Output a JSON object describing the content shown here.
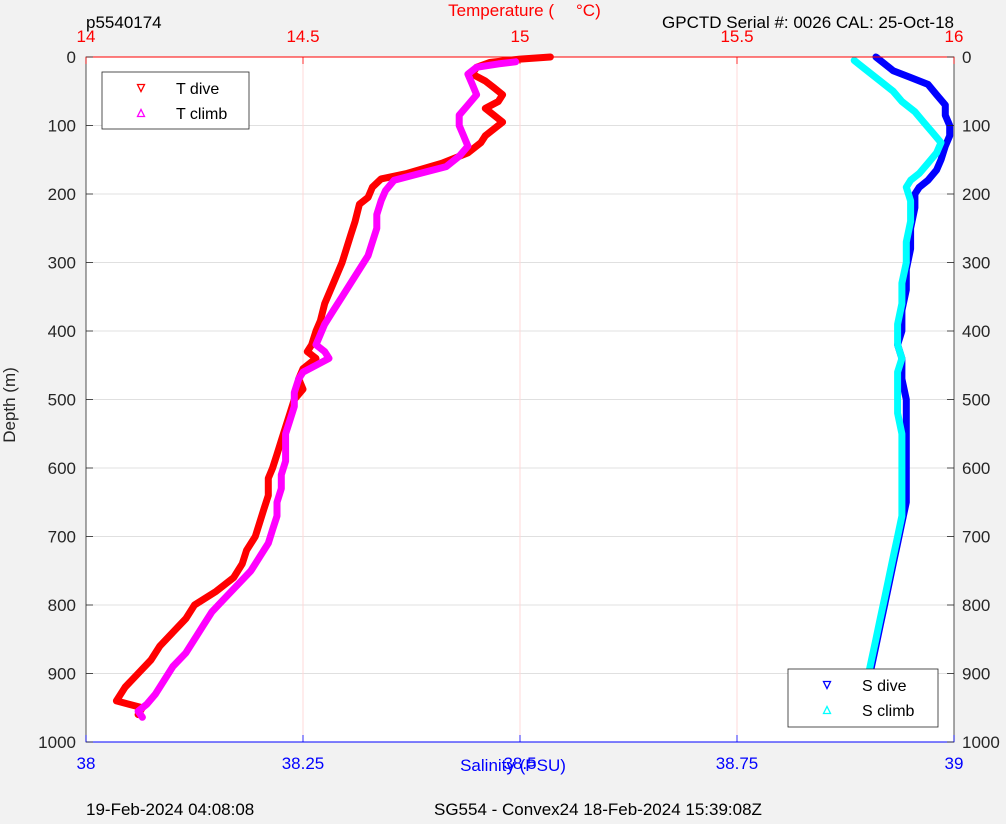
{
  "header": {
    "profile_id": "p5540174",
    "sensor_info": "GPCTD Serial #: 0026 CAL: 25-Oct-18"
  },
  "footer": {
    "plot_date": "19-Feb-2024 04:08:08",
    "mission": "SG554 - Convex24 18-Feb-2024 15:39:08Z"
  },
  "colors": {
    "temperature_axis": "#ff0000",
    "salinity_axis": "#0000ff",
    "t_dive": "#ff0000",
    "t_climb": "#ff00ff",
    "s_dive": "#0000ff",
    "s_climb": "#00ffff"
  },
  "chart_data": {
    "type": "line",
    "ylabel": "Depth (m)",
    "ylim": [
      0,
      1000
    ],
    "y_reversed": true,
    "y_ticks": [
      "0",
      "100",
      "200",
      "300",
      "400",
      "500",
      "600",
      "700",
      "800",
      "900",
      "1000"
    ],
    "temperature_axis": {
      "label": "Temperature (°C)",
      "label_left": "Temperature (",
      "label_right": "°C)",
      "position": "top",
      "range": [
        14,
        16
      ],
      "ticks": [
        "14",
        "14.5",
        "15",
        "15.5",
        "16"
      ]
    },
    "salinity_axis": {
      "label": "Salinity (PSU)",
      "position": "bottom",
      "range": [
        38,
        39
      ],
      "ticks": [
        "38",
        "38.25",
        "38.5",
        "38.75",
        "39"
      ]
    },
    "grid": true,
    "legends": [
      {
        "placement": "top-left",
        "entries": [
          "T dive",
          "T climb"
        ]
      },
      {
        "placement": "bottom-right",
        "entries": [
          "S dive",
          "S climb"
        ]
      }
    ],
    "series": [
      {
        "name": "T dive",
        "axis": "temperature",
        "marker": "triangle-down",
        "points": [
          [
            15.07,
            0
          ],
          [
            15.0,
            3
          ],
          [
            14.93,
            8
          ],
          [
            14.9,
            15
          ],
          [
            14.89,
            25
          ],
          [
            14.92,
            35
          ],
          [
            14.94,
            45
          ],
          [
            14.96,
            55
          ],
          [
            14.95,
            65
          ],
          [
            14.92,
            75
          ],
          [
            14.94,
            85
          ],
          [
            14.96,
            95
          ],
          [
            14.94,
            105
          ],
          [
            14.92,
            115
          ],
          [
            14.91,
            125
          ],
          [
            14.88,
            140
          ],
          [
            14.82,
            155
          ],
          [
            14.74,
            170
          ],
          [
            14.68,
            178
          ],
          [
            14.66,
            190
          ],
          [
            14.65,
            205
          ],
          [
            14.63,
            215
          ],
          [
            14.62,
            240
          ],
          [
            14.61,
            260
          ],
          [
            14.6,
            280
          ],
          [
            14.59,
            300
          ],
          [
            14.57,
            330
          ],
          [
            14.55,
            360
          ],
          [
            14.54,
            385
          ],
          [
            14.53,
            400
          ],
          [
            14.52,
            420
          ],
          [
            14.51,
            430
          ],
          [
            14.53,
            440
          ],
          [
            14.5,
            455
          ],
          [
            14.49,
            470
          ],
          [
            14.5,
            485
          ],
          [
            14.48,
            500
          ],
          [
            14.47,
            520
          ],
          [
            14.46,
            540
          ],
          [
            14.45,
            560
          ],
          [
            14.44,
            580
          ],
          [
            14.43,
            600
          ],
          [
            14.42,
            615
          ],
          [
            14.42,
            640
          ],
          [
            14.41,
            660
          ],
          [
            14.4,
            680
          ],
          [
            14.39,
            700
          ],
          [
            14.37,
            720
          ],
          [
            14.36,
            740
          ],
          [
            14.34,
            760
          ],
          [
            14.3,
            780
          ],
          [
            14.25,
            800
          ],
          [
            14.23,
            820
          ],
          [
            14.2,
            840
          ],
          [
            14.17,
            860
          ],
          [
            14.15,
            880
          ],
          [
            14.12,
            900
          ],
          [
            14.09,
            920
          ],
          [
            14.07,
            940
          ],
          [
            14.13,
            950
          ],
          [
            14.12,
            960
          ]
        ]
      },
      {
        "name": "T climb",
        "axis": "temperature",
        "marker": "triangle-up",
        "points": [
          [
            14.13,
            964
          ],
          [
            14.12,
            955
          ],
          [
            14.14,
            945
          ],
          [
            14.16,
            930
          ],
          [
            14.18,
            910
          ],
          [
            14.2,
            890
          ],
          [
            14.23,
            870
          ],
          [
            14.25,
            850
          ],
          [
            14.27,
            830
          ],
          [
            14.29,
            810
          ],
          [
            14.32,
            790
          ],
          [
            14.35,
            770
          ],
          [
            14.38,
            750
          ],
          [
            14.4,
            730
          ],
          [
            14.42,
            710
          ],
          [
            14.43,
            690
          ],
          [
            14.44,
            670
          ],
          [
            14.44,
            650
          ],
          [
            14.45,
            630
          ],
          [
            14.45,
            610
          ],
          [
            14.46,
            590
          ],
          [
            14.46,
            570
          ],
          [
            14.46,
            550
          ],
          [
            14.47,
            530
          ],
          [
            14.48,
            510
          ],
          [
            14.48,
            490
          ],
          [
            14.49,
            470
          ],
          [
            14.5,
            460
          ],
          [
            14.53,
            450
          ],
          [
            14.56,
            440
          ],
          [
            14.55,
            430
          ],
          [
            14.53,
            420
          ],
          [
            14.54,
            405
          ],
          [
            14.55,
            390
          ],
          [
            14.57,
            370
          ],
          [
            14.59,
            350
          ],
          [
            14.61,
            330
          ],
          [
            14.63,
            310
          ],
          [
            14.65,
            290
          ],
          [
            14.66,
            270
          ],
          [
            14.67,
            250
          ],
          [
            14.67,
            230
          ],
          [
            14.68,
            210
          ],
          [
            14.69,
            195
          ],
          [
            14.71,
            180
          ],
          [
            14.77,
            170
          ],
          [
            14.83,
            160
          ],
          [
            14.86,
            145
          ],
          [
            14.88,
            130
          ],
          [
            14.87,
            115
          ],
          [
            14.86,
            100
          ],
          [
            14.86,
            85
          ],
          [
            14.88,
            70
          ],
          [
            14.9,
            55
          ],
          [
            14.89,
            40
          ],
          [
            14.88,
            25
          ],
          [
            14.9,
            15
          ],
          [
            14.95,
            10
          ],
          [
            14.99,
            7
          ]
        ]
      },
      {
        "name": "S dive",
        "axis": "salinity",
        "marker": "triangle-down",
        "points": [
          [
            38.91,
            0
          ],
          [
            38.92,
            10
          ],
          [
            38.93,
            20
          ],
          [
            38.95,
            30
          ],
          [
            38.97,
            40
          ],
          [
            38.98,
            55
          ],
          [
            38.99,
            70
          ],
          [
            38.99,
            85
          ],
          [
            38.995,
            100
          ],
          [
            38.995,
            115
          ],
          [
            38.99,
            130
          ],
          [
            38.985,
            150
          ],
          [
            38.98,
            165
          ],
          [
            38.97,
            180
          ],
          [
            38.96,
            190
          ],
          [
            38.955,
            200
          ],
          [
            38.955,
            220
          ],
          [
            38.95,
            250
          ],
          [
            38.95,
            280
          ],
          [
            38.945,
            310
          ],
          [
            38.945,
            340
          ],
          [
            38.94,
            370
          ],
          [
            38.94,
            400
          ],
          [
            38.935,
            420
          ],
          [
            38.94,
            440
          ],
          [
            38.94,
            470
          ],
          [
            38.945,
            500
          ],
          [
            38.945,
            530
          ],
          [
            38.945,
            560
          ],
          [
            38.945,
            590
          ],
          [
            38.945,
            620
          ],
          [
            38.945,
            650
          ],
          [
            38.94,
            680
          ],
          [
            38.935,
            710
          ],
          [
            38.93,
            740
          ],
          [
            38.925,
            770
          ],
          [
            38.92,
            800
          ],
          [
            38.915,
            830
          ],
          [
            38.91,
            860
          ],
          [
            38.905,
            890
          ],
          [
            38.9,
            920
          ],
          [
            38.895,
            945
          ],
          [
            38.89,
            962
          ]
        ]
      },
      {
        "name": "S climb",
        "axis": "salinity",
        "marker": "triangle-up",
        "points": [
          [
            38.89,
            965
          ],
          [
            38.895,
            940
          ],
          [
            38.9,
            910
          ],
          [
            38.905,
            880
          ],
          [
            38.91,
            850
          ],
          [
            38.915,
            820
          ],
          [
            38.92,
            790
          ],
          [
            38.925,
            760
          ],
          [
            38.93,
            730
          ],
          [
            38.935,
            700
          ],
          [
            38.94,
            670
          ],
          [
            38.94,
            640
          ],
          [
            38.94,
            610
          ],
          [
            38.94,
            580
          ],
          [
            38.94,
            550
          ],
          [
            38.935,
            520
          ],
          [
            38.935,
            490
          ],
          [
            38.935,
            460
          ],
          [
            38.94,
            440
          ],
          [
            38.935,
            420
          ],
          [
            38.935,
            390
          ],
          [
            38.94,
            360
          ],
          [
            38.94,
            330
          ],
          [
            38.945,
            300
          ],
          [
            38.945,
            270
          ],
          [
            38.95,
            240
          ],
          [
            38.95,
            210
          ],
          [
            38.945,
            190
          ],
          [
            38.95,
            180
          ],
          [
            38.96,
            170
          ],
          [
            38.97,
            155
          ],
          [
            38.98,
            140
          ],
          [
            38.985,
            125
          ],
          [
            38.975,
            110
          ],
          [
            38.965,
            95
          ],
          [
            38.955,
            80
          ],
          [
            38.94,
            65
          ],
          [
            38.93,
            50
          ],
          [
            38.915,
            35
          ],
          [
            38.9,
            20
          ],
          [
            38.89,
            10
          ],
          [
            38.885,
            5
          ]
        ]
      }
    ]
  }
}
